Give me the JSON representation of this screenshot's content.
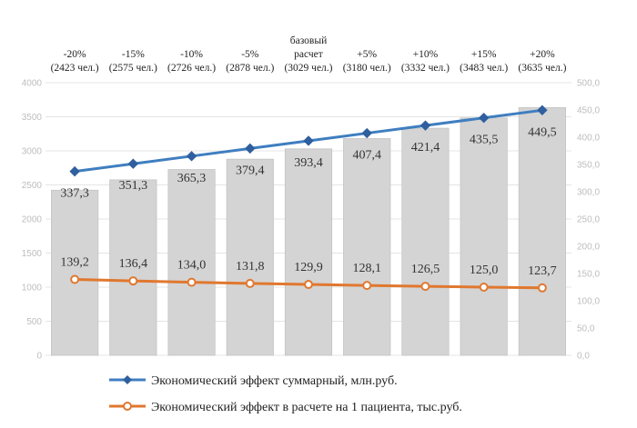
{
  "chart_data": {
    "type": "bar+line",
    "categories": [
      {
        "line1": "-20%",
        "line2": "(2423 чел.)"
      },
      {
        "line1": "-15%",
        "line2": "(2575 чел.)"
      },
      {
        "line1": "-10%",
        "line2": "(2726 чел.)"
      },
      {
        "line1": "-5%",
        "line2": "(2878 чел.)"
      },
      {
        "line0": "базовый",
        "line1": "расчет",
        "line2": "(3029 чел.)"
      },
      {
        "line1": "+5%",
        "line2": "(3180 чел.)"
      },
      {
        "line1": "+10%",
        "line2": "(3332 чел.)"
      },
      {
        "line1": "+15%",
        "line2": "(3483 чел.)"
      },
      {
        "line1": "+20%",
        "line2": "(3635 чел.)"
      }
    ],
    "bars": {
      "axis": "left",
      "values": [
        2423,
        2575,
        2726,
        2878,
        3029,
        3180,
        3332,
        3483,
        3635
      ],
      "color": "#d4d4d4"
    },
    "series": [
      {
        "name": "Экономический эффект суммарный, млн.руб.",
        "axis": "right",
        "values": [
          337.3,
          351.3,
          365.3,
          379.4,
          393.4,
          407.4,
          421.4,
          435.5,
          449.5
        ],
        "labels": [
          "337,3",
          "351,3",
          "365,3",
          "379,4",
          "393,4",
          "407,4",
          "421,4",
          "435,5",
          "449,5"
        ],
        "color": "#3f7ec0",
        "marker": "diamond"
      },
      {
        "name": "Экономический эффект в расчете на 1 пациента, тыс.руб.",
        "axis": "right",
        "values": [
          139.2,
          136.4,
          134.0,
          131.8,
          129.9,
          128.1,
          126.5,
          125.0,
          123.7
        ],
        "labels": [
          "139,2",
          "136,4",
          "134,0",
          "131,8",
          "129,9",
          "128,1",
          "126,5",
          "125,0",
          "123,7"
        ],
        "color": "#e0782f",
        "marker": "circle"
      }
    ],
    "y_left": {
      "min": 0,
      "max": 4000,
      "step": 500,
      "ticks": [
        "0",
        "500",
        "1000",
        "1500",
        "2000",
        "2500",
        "3000",
        "3500",
        "4000"
      ]
    },
    "y_right": {
      "min": 0,
      "max": 500,
      "step": 50,
      "ticks": [
        "0,0",
        "50,0",
        "100,0",
        "150,0",
        "200,0",
        "250,0",
        "300,0",
        "350,0",
        "400,0",
        "450,0",
        "500,0"
      ]
    },
    "grid": true,
    "legend_position": "bottom"
  }
}
